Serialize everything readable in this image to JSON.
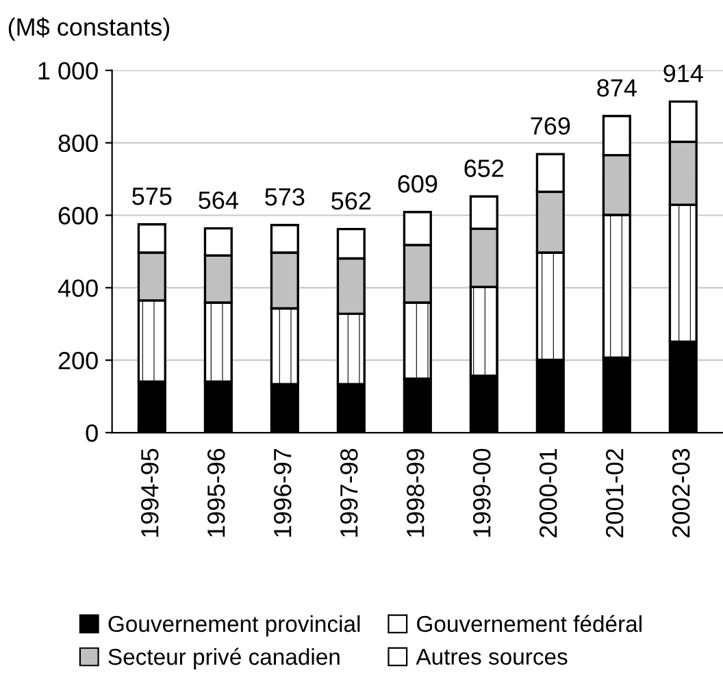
{
  "chart_data": {
    "type": "bar",
    "stacked": true,
    "ylabel": "(M$ constants)",
    "categories": [
      "1994-95",
      "1995-96",
      "1996-97",
      "1997-98",
      "1998-99",
      "1999-00",
      "2000-01",
      "2001-02",
      "2002-03"
    ],
    "series": [
      {
        "name": "Gouvernement provincial",
        "color": "#000000",
        "values": [
          141,
          141,
          134,
          134,
          149,
          157,
          201,
          207,
          251
        ]
      },
      {
        "name": "Gouvernement fédéral",
        "color": "#ffffff",
        "values": [
          224,
          218,
          209,
          194,
          210,
          245,
          296,
          394,
          378
        ]
      },
      {
        "name": "Secteur privé canadien",
        "color": "#c0c0c0",
        "values": [
          132,
          130,
          154,
          153,
          159,
          161,
          168,
          165,
          174
        ]
      },
      {
        "name": "Autres sources",
        "color": "#ffffff",
        "values": [
          78,
          75,
          76,
          81,
          91,
          89,
          104,
          108,
          111
        ]
      }
    ],
    "totals": [
      "575",
      "564",
      "573",
      "562",
      "609",
      "652",
      "769",
      "874",
      "914"
    ],
    "ylim": [
      0,
      1000
    ],
    "yticks": [
      0,
      200,
      400,
      600,
      800,
      {
        "value": 1000,
        "label": "1 000"
      }
    ],
    "grid": "y",
    "legend": "bottom"
  }
}
